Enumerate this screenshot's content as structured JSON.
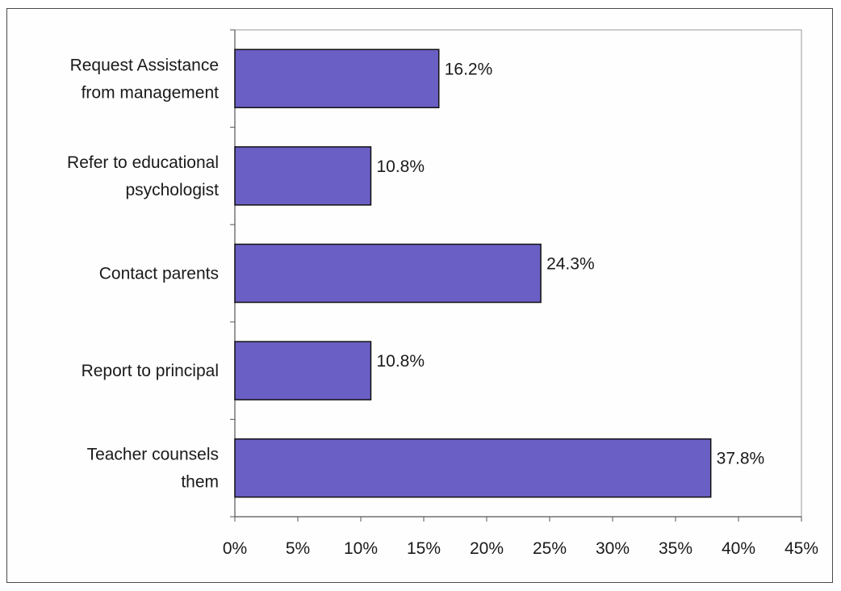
{
  "chart_data": {
    "type": "bar",
    "orientation": "horizontal",
    "categories": [
      [
        "Request Assistance",
        "from management"
      ],
      [
        "Refer to educational",
        "psychologist"
      ],
      [
        "Contact parents"
      ],
      [
        "Report to principal"
      ],
      [
        "Teacher counsels",
        "them"
      ]
    ],
    "values": [
      16.2,
      10.8,
      24.3,
      10.8,
      37.8
    ],
    "value_labels": [
      "16.2%",
      "10.8%",
      "24.3%",
      "10.8%",
      "37.8%"
    ],
    "xlim": [
      0,
      45
    ],
    "xticks": [
      0,
      5,
      10,
      15,
      20,
      25,
      30,
      35,
      40,
      45
    ],
    "xtick_labels": [
      "0%",
      "5%",
      "10%",
      "15%",
      "20%",
      "25%",
      "30%",
      "35%",
      "40%",
      "45%"
    ],
    "title": "",
    "xlabel": "",
    "ylabel": "",
    "grid": false,
    "legend": "none",
    "colors": {
      "bar_fill": "#6a5fc4",
      "bar_stroke": "#111111",
      "plot_border": "#9a9a9a",
      "axis": "#555555"
    }
  }
}
